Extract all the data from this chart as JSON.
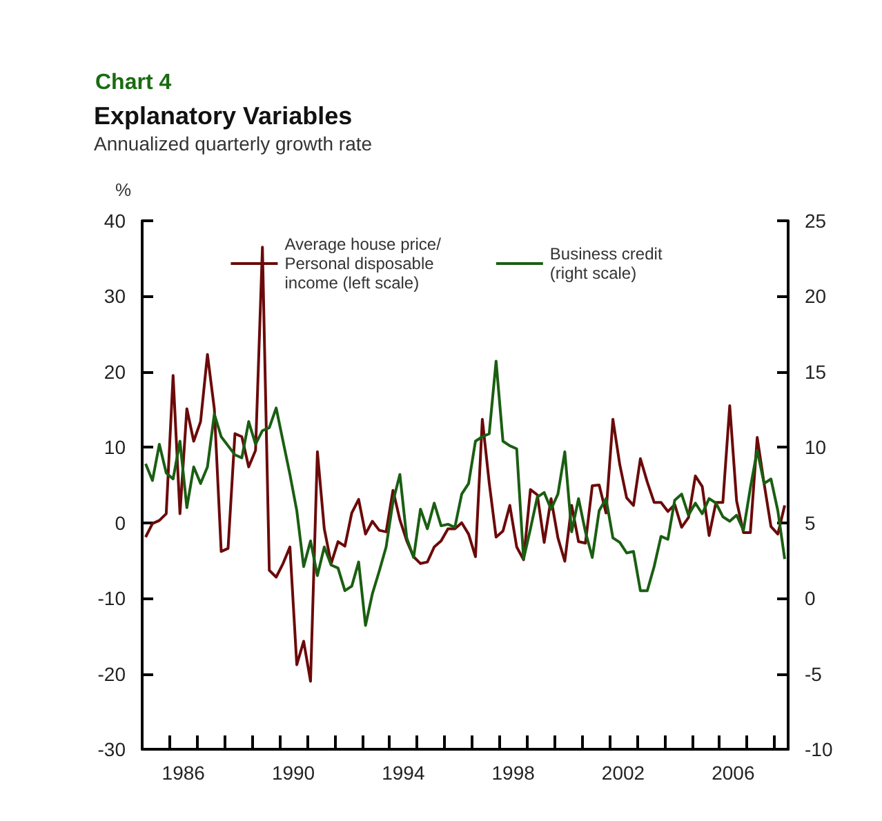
{
  "chart_data": {
    "type": "line",
    "title": "Explanatory Variables",
    "subtitle": "Annualized quarterly growth rate",
    "annotations": [
      "Chart 4"
    ],
    "ylabel": "%",
    "x": [
      1985.125,
      1985.375,
      1985.625,
      1985.875,
      1986.125,
      1986.375,
      1986.625,
      1986.875,
      1987.125,
      1987.375,
      1987.625,
      1987.875,
      1988.125,
      1988.375,
      1988.625,
      1988.875,
      1989.125,
      1989.375,
      1989.625,
      1989.875,
      1990.125,
      1990.375,
      1990.625,
      1990.875,
      1991.125,
      1991.375,
      1991.625,
      1991.875,
      1992.125,
      1992.375,
      1992.625,
      1992.875,
      1993.125,
      1993.375,
      1993.625,
      1993.875,
      1994.125,
      1994.375,
      1994.625,
      1994.875,
      1995.125,
      1995.375,
      1995.625,
      1995.875,
      1996.125,
      1996.375,
      1996.625,
      1996.875,
      1997.125,
      1997.375,
      1997.625,
      1997.875,
      1998.125,
      1998.375,
      1998.625,
      1998.875,
      1999.125,
      1999.375,
      1999.625,
      1999.875,
      2000.125,
      2000.375,
      2000.625,
      2000.875,
      2001.125,
      2001.375,
      2001.625,
      2001.875,
      2002.125,
      2002.375,
      2002.625,
      2002.875,
      2003.125,
      2003.375,
      2003.625,
      2003.875,
      2004.125,
      2004.375,
      2004.625,
      2004.875,
      2005.125,
      2005.375,
      2005.625,
      2005.875,
      2006.125,
      2006.375,
      2006.625,
      2006.875,
      2007.125,
      2007.375,
      2007.625,
      2007.875,
      2008.125,
      2008.375
    ],
    "series": [
      {
        "name": "Average house price/\nPersonal disposable\nincome (left scale)",
        "color": "#6b0a0a",
        "values": [
          -1.9,
          -0.1,
          0.3,
          1.2,
          19.5,
          1.2,
          15.1,
          10.8,
          13.4,
          22.3,
          15.1,
          -3.8,
          -3.4,
          11.8,
          11.4,
          7.4,
          9.6,
          36.5,
          -6.3,
          -7.2,
          -5.4,
          -3.2,
          -18.8,
          -15.7,
          -21,
          9.4,
          -0.8,
          -5.4,
          -2.5,
          -3.1,
          1.3,
          3.1,
          -1.5,
          0.2,
          -1,
          -1.2,
          4.3,
          0.4,
          -2.4,
          -4.5,
          -5.4,
          -5.2,
          -3.2,
          -2.4,
          -0.8,
          -0.8,
          0,
          -1.5,
          -4.5,
          13.7,
          5.3,
          -1.9,
          -1.1,
          2.3,
          -3.2,
          -4.9,
          4.4,
          3.7,
          -2.6,
          3.2,
          -2,
          -5.1,
          2.3,
          -2.5,
          -2.7,
          4.9,
          5,
          1.3,
          13.7,
          7.7,
          3.3,
          2.3,
          8.5,
          5.4,
          2.7,
          2.7,
          1.5,
          2.4,
          -0.6,
          0.7,
          6.2,
          4.8,
          -1.7,
          2.7,
          2.7,
          15.5,
          2.9,
          -1.3,
          -1.3,
          11.3,
          5.2,
          -0.5,
          -1.5,
          2.3
        ]
      },
      {
        "name": "Business credit\n(right scale)",
        "color": "#1a5e12",
        "axis": "y2",
        "values": [
          8.9,
          7.8,
          10.2,
          8.3,
          7.9,
          10.4,
          6.0,
          8.7,
          7.6,
          8.7,
          12.2,
          10.7,
          10.1,
          9.5,
          9.3,
          11.7,
          10.2,
          11.1,
          11.3,
          12.6,
          10.4,
          8.2,
          5.8,
          2.1,
          3.8,
          1.5,
          3.4,
          2.2,
          2.0,
          0.5,
          0.8,
          2.4,
          -1.8,
          0.3,
          1.8,
          3.4,
          6.4,
          8.2,
          4.0,
          2.7,
          5.9,
          4.6,
          6.3,
          4.8,
          4.9,
          4.7,
          6.9,
          7.6,
          10.4,
          10.7,
          10.9,
          15.7,
          10.4,
          10.1,
          9.9,
          2.6,
          4.6,
          6.7,
          7.0,
          5.9,
          6.9,
          9.7,
          4.4,
          6.6,
          4.4,
          2.7,
          5.8,
          6.6,
          4.0,
          3.7,
          3.0,
          3.1,
          0.5,
          0.5,
          2.1,
          4.1,
          3.9,
          6.5,
          6.9,
          5.5,
          6.3,
          5.6,
          6.6,
          6.3,
          5.4,
          5.1,
          5.5,
          4.5,
          7.3,
          9.8,
          7.6,
          7.9,
          5.8,
          2.6
        ]
      }
    ],
    "xlim": [
      1985,
      2008.5
    ],
    "xticks": [
      {
        "value": 1985,
        "label": null
      },
      {
        "value": 1986,
        "label": null
      },
      {
        "value": 1986.5,
        "label": "1986"
      },
      {
        "value": 1987,
        "label": null
      },
      {
        "value": 1988,
        "label": null
      },
      {
        "value": 1989,
        "label": null
      },
      {
        "value": 1990,
        "label": null
      },
      {
        "value": 1990.5,
        "label": "1990"
      },
      {
        "value": 1991,
        "label": null
      },
      {
        "value": 1992,
        "label": null
      },
      {
        "value": 1993,
        "label": null
      },
      {
        "value": 1994,
        "label": null
      },
      {
        "value": 1994.5,
        "label": "1994"
      },
      {
        "value": 1995,
        "label": null
      },
      {
        "value": 1996,
        "label": null
      },
      {
        "value": 1997,
        "label": null
      },
      {
        "value": 1998,
        "label": null
      },
      {
        "value": 1998.5,
        "label": "1998"
      },
      {
        "value": 1999,
        "label": null
      },
      {
        "value": 2000,
        "label": null
      },
      {
        "value": 2001,
        "label": null
      },
      {
        "value": 2002,
        "label": null
      },
      {
        "value": 2002.5,
        "label": "2002"
      },
      {
        "value": 2003,
        "label": null
      },
      {
        "value": 2004,
        "label": null
      },
      {
        "value": 2005,
        "label": null
      },
      {
        "value": 2006,
        "label": null
      },
      {
        "value": 2006.5,
        "label": "2006"
      },
      {
        "value": 2007,
        "label": null
      },
      {
        "value": 2008,
        "label": null
      }
    ],
    "ylim": [
      -30,
      40
    ],
    "yticks": [
      -30,
      -20,
      -10,
      0,
      10,
      20,
      30,
      40
    ],
    "y2lim": [
      -10,
      25
    ],
    "y2ticks": [
      -10,
      -5,
      0,
      5,
      10,
      15,
      20,
      25
    ],
    "grid": false,
    "legend": "top",
    "marker": "none",
    "line_style": "solid"
  }
}
